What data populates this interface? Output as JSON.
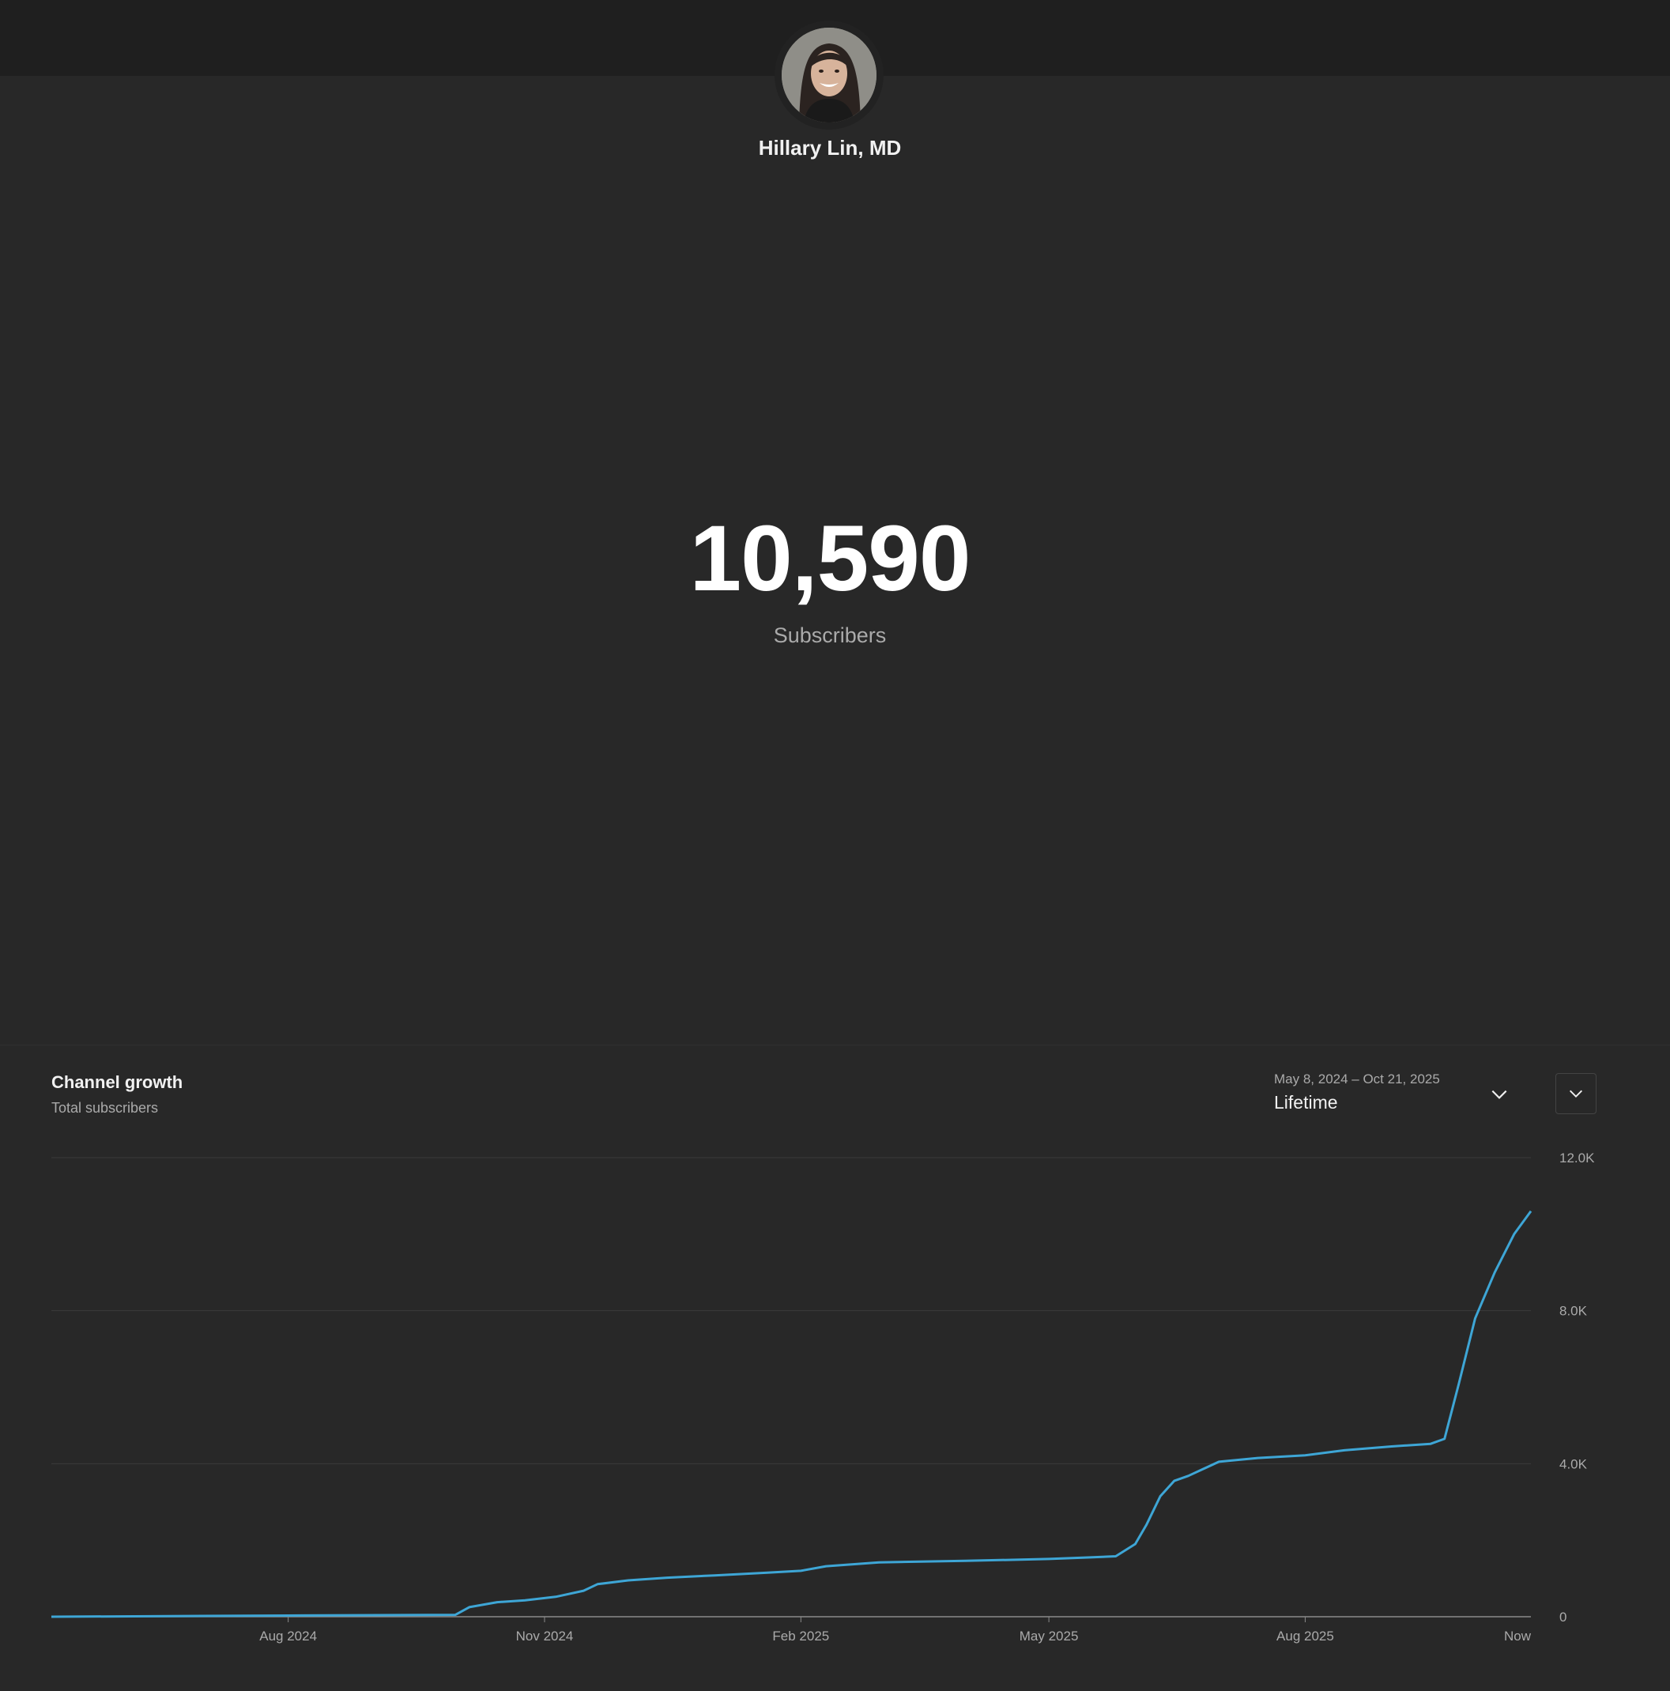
{
  "channel": {
    "name": "Hillary Lin, MD",
    "avatar_icon": "profile-photo"
  },
  "stats": {
    "subscriber_count": "10,590",
    "subscriber_label": "Subscribers"
  },
  "card": {
    "title": "Channel growth",
    "subtitle": "Total subscribers",
    "date_range": "May 8, 2024 – Oct 21, 2025",
    "period": "Lifetime",
    "dropdown_icon": "chevron-down-icon",
    "collapse_icon": "chevron-down-icon"
  },
  "colors": {
    "background": "#282828",
    "top_band": "#1f1f1f",
    "line": "#3ea6d6",
    "grid": "#3a3a3a"
  },
  "chart_data": {
    "type": "line",
    "title": "Channel growth",
    "subtitle": "Total subscribers",
    "xlabel": "",
    "ylabel": "",
    "ylim": [
      0,
      12000
    ],
    "y_ticks": [
      {
        "value": 0,
        "label": "0"
      },
      {
        "value": 4000,
        "label": "4.0K"
      },
      {
        "value": 8000,
        "label": "8.0K"
      },
      {
        "value": 12000,
        "label": "12.0K"
      }
    ],
    "xlim": [
      "2024-05-08",
      "2025-10-21"
    ],
    "x_ticks": [
      {
        "date": "2024-08-01",
        "label": "Aug 2024"
      },
      {
        "date": "2024-11-01",
        "label": "Nov 2024"
      },
      {
        "date": "2025-02-01",
        "label": "Feb 2025"
      },
      {
        "date": "2025-05-01",
        "label": "May 2025"
      },
      {
        "date": "2025-08-01",
        "label": "Aug 2025"
      },
      {
        "date": "2025-10-21",
        "label": "Now"
      }
    ],
    "grid": true,
    "legend": "none",
    "series": [
      {
        "x": [
          "2024-05-08",
          "2024-08-01",
          "2024-09-30",
          "2024-10-05",
          "2024-10-15",
          "2024-10-25",
          "2024-11-05",
          "2024-11-15",
          "2024-11-20",
          "2024-12-01",
          "2024-12-15",
          "2025-01-01",
          "2025-01-20",
          "2025-02-01",
          "2025-02-10",
          "2025-03-01",
          "2025-04-01",
          "2025-05-01",
          "2025-05-15",
          "2025-05-25",
          "2025-06-01",
          "2025-06-05",
          "2025-06-10",
          "2025-06-15",
          "2025-06-20",
          "2025-07-01",
          "2025-07-15",
          "2025-08-01",
          "2025-08-15",
          "2025-09-01",
          "2025-09-15",
          "2025-09-20",
          "2025-09-25",
          "2025-10-01",
          "2025-10-08",
          "2025-10-15",
          "2025-10-21"
        ],
        "y": [
          0,
          30,
          50,
          250,
          380,
          430,
          520,
          680,
          850,
          950,
          1020,
          1080,
          1150,
          1200,
          1320,
          1420,
          1460,
          1510,
          1550,
          1580,
          1900,
          2400,
          3150,
          3550,
          3680,
          4050,
          4150,
          4220,
          4350,
          4450,
          4520,
          4650,
          6050,
          7800,
          9000,
          10000,
          10600
        ]
      }
    ]
  }
}
